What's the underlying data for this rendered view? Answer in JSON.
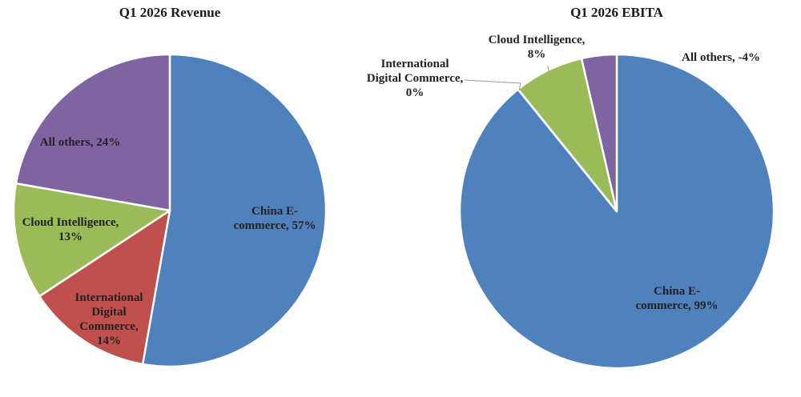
{
  "chart_data": [
    {
      "type": "pie",
      "title": "Q1 2026 Revenue",
      "slices": [
        {
          "label": "China E-commerce",
          "value": 57,
          "value_label": "57%",
          "color": "#4f81bd"
        },
        {
          "label": "International Digital Commerce",
          "value": 14,
          "value_label": "14%",
          "color": "#c0504d"
        },
        {
          "label": "Cloud Intelligence",
          "value": 13,
          "value_label": "13%",
          "color": "#9bbb59"
        },
        {
          "label": "All others",
          "value": 24,
          "value_label": "24%",
          "color": "#8064a2"
        }
      ]
    },
    {
      "type": "pie",
      "title": "Q1 2026 EBITA",
      "slices": [
        {
          "label": "China E-commerce",
          "value": 99,
          "value_label": "99%",
          "color": "#4f81bd"
        },
        {
          "label": "International Digital Commerce",
          "value": 0,
          "value_label": "0%",
          "color": "#c0504d"
        },
        {
          "label": "Cloud Intelligence",
          "value": 8,
          "value_label": "8%",
          "color": "#9bbb59"
        },
        {
          "label": "All others",
          "value": -4,
          "value_label": "-4%",
          "color": "#8064a2"
        }
      ]
    }
  ]
}
